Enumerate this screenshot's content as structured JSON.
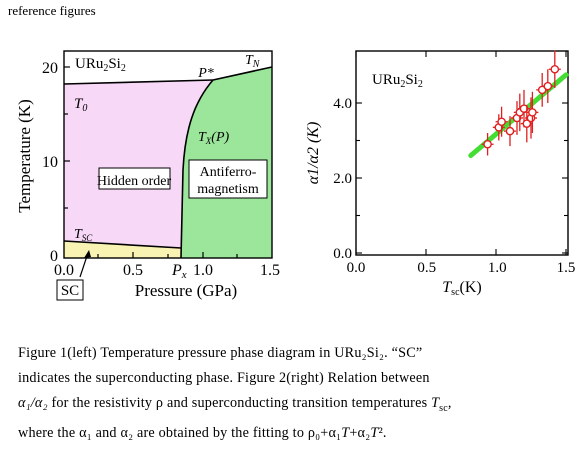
{
  "header": "reference figures",
  "fig1": {
    "ylabel": "Temperature (K)",
    "xlabel": "Pressure (GPa)",
    "yticks": [
      "20",
      "10",
      "0"
    ],
    "xticks": [
      "0.0",
      "0.5",
      "1.0",
      "1.5"
    ],
    "px_label": "P",
    "px_sub": "x",
    "material": {
      "base": "URu",
      "sub1": "2",
      "mid": "Si",
      "sub2": "2"
    },
    "labels": {
      "t0": "T",
      "t0_sub": "0",
      "tn": "T",
      "tn_sub": "N",
      "pstar": "P*",
      "tx": "T",
      "tx_sub": "X",
      "tx_arg": "(P)",
      "hidden": "Hidden order",
      "afm1": "Antiferro-",
      "afm2": "magnetism",
      "tsc": "T",
      "tsc_sub": "SC",
      "sc_box": "SC"
    },
    "colors": {
      "hidden": "#f7d8f7",
      "afm": "#9be69b",
      "sc": "#f9f3b3"
    }
  },
  "fig2": {
    "ylabel": "α1/α2 (K)",
    "xlabel_main": "T",
    "xlabel_sub": "sc",
    "xlabel_unit": "(K)",
    "xticks": [
      "0.0",
      "0.5",
      "1.0",
      "1.5"
    ],
    "yticks": [
      "0.0",
      "2.0",
      "4.0"
    ],
    "material": {
      "base": "URu",
      "sub1": "2",
      "mid": "Si",
      "sub2": "2"
    }
  },
  "chart_data": {
    "type": "scatter",
    "xlim": [
      0,
      1.5
    ],
    "ylim": [
      0,
      5.0
    ],
    "xlabel": "Tsc (K)",
    "ylabel": "α1/α2 (K)",
    "points": [
      {
        "x": 0.94,
        "y": 2.9,
        "err": 0.3
      },
      {
        "x": 1.02,
        "y": 3.35,
        "err": 0.35
      },
      {
        "x": 1.04,
        "y": 3.5,
        "err": 0.4
      },
      {
        "x": 1.1,
        "y": 3.25,
        "err": 0.4
      },
      {
        "x": 1.15,
        "y": 3.6,
        "err": 0.45
      },
      {
        "x": 1.17,
        "y": 3.75,
        "err": 0.5
      },
      {
        "x": 1.2,
        "y": 3.85,
        "err": 0.5
      },
      {
        "x": 1.22,
        "y": 3.45,
        "err": 0.5
      },
      {
        "x": 1.25,
        "y": 3.6,
        "err": 0.55
      },
      {
        "x": 1.26,
        "y": 3.75,
        "err": 0.55
      },
      {
        "x": 1.33,
        "y": 4.35,
        "err": 0.45
      },
      {
        "x": 1.37,
        "y": 4.45,
        "err": 0.45
      },
      {
        "x": 1.42,
        "y": 4.9,
        "err": 0.5
      }
    ],
    "fit_line": {
      "x": [
        0.82,
        1.5
      ],
      "y": [
        2.6,
        4.75
      ]
    }
  },
  "caption": {
    "l1": "Figure 1(left) Temperature pressure phase diagram in URu₂Si₂.     “SC”",
    "l2": "indicates the superconducting phase. Figure 2(right)    Relation between",
    "l3a": "α₁/α₂",
    "l3b": " for the resistivity ρ and superconducting transition temperatures  ",
    "l3c": "T",
    "l3d": "sc",
    "l3e": ",",
    "l4a": "where the α₁ and α₂ are obtained by the fitting to ρ₀+α₁",
    "l4b": "T",
    "l4c": "+α₂",
    "l4d": "T",
    "l4e": "²."
  }
}
